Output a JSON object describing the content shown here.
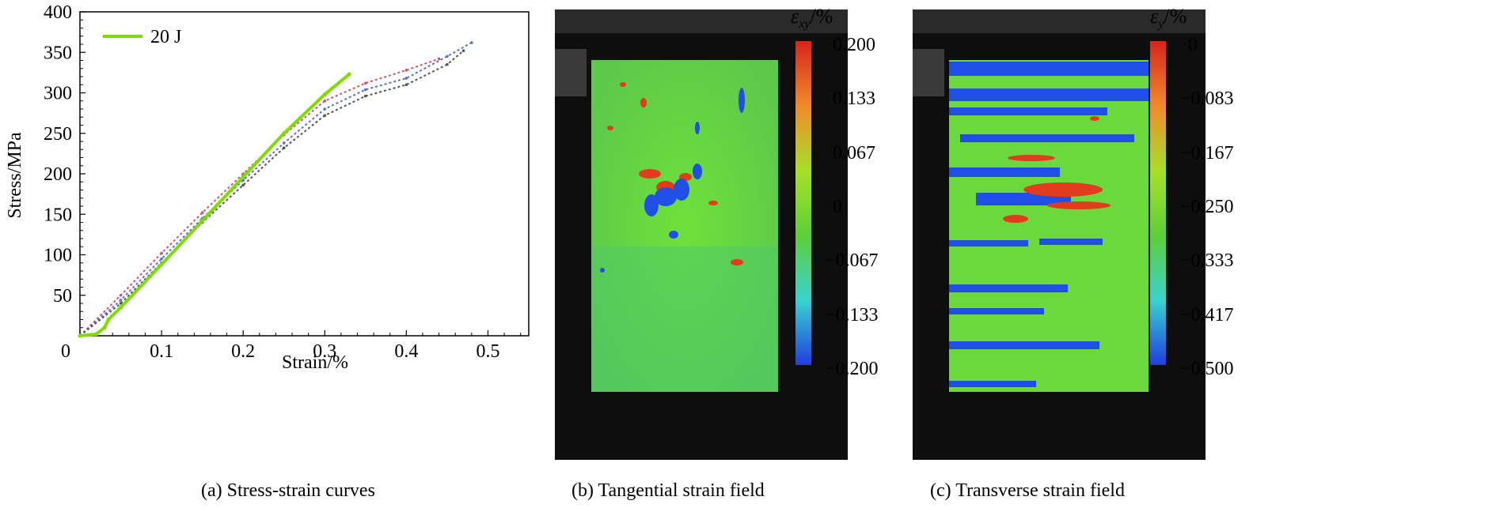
{
  "chart_data": {
    "type": "line",
    "xlabel": "Strain/%",
    "ylabel": "Stress/MPa",
    "xlim": [
      0,
      0.55
    ],
    "ylim": [
      0,
      400
    ],
    "xticks": [
      "0",
      "0.1",
      "0.2",
      "0.3",
      "0.4",
      "0.5"
    ],
    "yticks": [
      "50",
      "100",
      "150",
      "200",
      "250",
      "300",
      "350",
      "400"
    ],
    "legend_position": "top-left",
    "series": [
      {
        "name": "20 J",
        "color": "#7fdc00",
        "x": [
          0.0,
          0.02,
          0.03,
          0.035,
          0.05,
          0.1,
          0.15,
          0.2,
          0.25,
          0.3,
          0.33
        ],
        "y": [
          0,
          2,
          10,
          20,
          35,
          88,
          142,
          196,
          250,
          298,
          323
        ]
      },
      {
        "name": "",
        "color": "#d4506e",
        "x": [
          0.0,
          0.05,
          0.1,
          0.15,
          0.2,
          0.25,
          0.3,
          0.35,
          0.4,
          0.44
        ],
        "y": [
          0,
          50,
          102,
          152,
          200,
          248,
          290,
          312,
          328,
          342
        ]
      },
      {
        "name": "",
        "color": "#5a6fd6",
        "x": [
          0.0,
          0.05,
          0.1,
          0.15,
          0.2,
          0.25,
          0.3,
          0.35,
          0.4,
          0.45,
          0.48
        ],
        "y": [
          0,
          44,
          95,
          145,
          192,
          238,
          280,
          304,
          318,
          345,
          362
        ]
      },
      {
        "name": "",
        "color": "#555555",
        "x": [
          0.0,
          0.05,
          0.1,
          0.15,
          0.2,
          0.25,
          0.3,
          0.35,
          0.4,
          0.45,
          0.47
        ],
        "y": [
          0,
          40,
          90,
          140,
          186,
          232,
          272,
          296,
          310,
          335,
          352
        ]
      }
    ]
  },
  "captions": {
    "a": "(a) Stress-strain curves",
    "b": "(b) Tangential strain field",
    "c": "(c) Transverse strain field"
  },
  "colorbars": {
    "b": {
      "title_symbol": "ε",
      "title_sub": "xy",
      "title_unit": "/%",
      "ticks": [
        "0.200",
        "0.133",
        "0.067",
        "0",
        "−0.067",
        "−0.133",
        "−0.200"
      ]
    },
    "c": {
      "title_symbol": "ε",
      "title_sub": "y",
      "title_unit": "/%",
      "ticks": [
        "0",
        "−0.083",
        "−0.167",
        "−0.250",
        "−0.333",
        "−0.417",
        "−0.500"
      ]
    }
  }
}
